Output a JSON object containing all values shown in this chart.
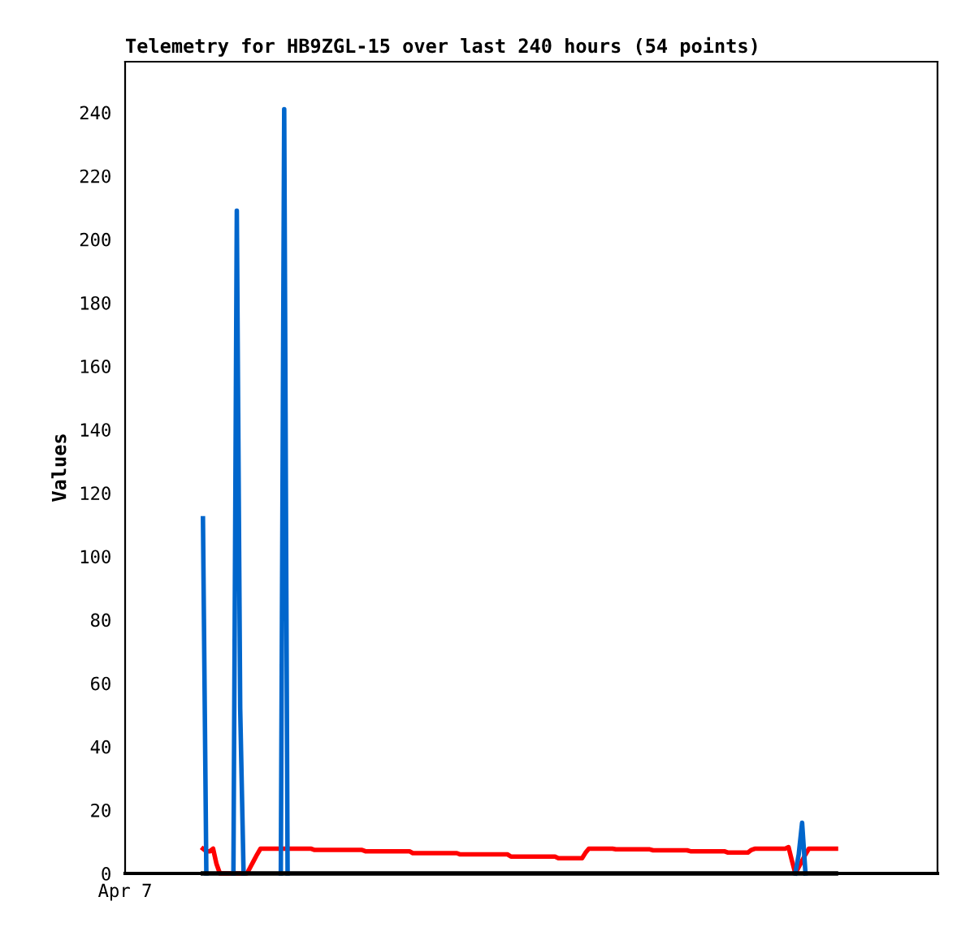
{
  "chart_data": {
    "type": "line",
    "title": "Telemetry for HB9ZGL-15 over last 240 hours (54 points)",
    "ylabel": "Values",
    "annotations": [
      "Apr 7"
    ],
    "categories": [
      null,
      null,
      null,
      null,
      null,
      null,
      null,
      null,
      null,
      null,
      null,
      null,
      null,
      null,
      null,
      null,
      null,
      null,
      null,
      null,
      null,
      null,
      null,
      null,
      null,
      null,
      null,
      null,
      null,
      null,
      null,
      null,
      null,
      null,
      null,
      null,
      null,
      null,
      null,
      null,
      null,
      null,
      null,
      null,
      null,
      null,
      null,
      null,
      null,
      null,
      null,
      null,
      null,
      null,
      null,
      null,
      null,
      null,
      null,
      null,
      null,
      null,
      null,
      null,
      null,
      null,
      null,
      null,
      null,
      null,
      null,
      null,
      null,
      null,
      null,
      null,
      null,
      null,
      null,
      null,
      null,
      null,
      null,
      null,
      null,
      null,
      null,
      null,
      null,
      null,
      null,
      null,
      null,
      null,
      null,
      null,
      null,
      null,
      null,
      null,
      null,
      null,
      null,
      null,
      null,
      null,
      null,
      null,
      null,
      null,
      null,
      null,
      null,
      null,
      null,
      null,
      null,
      null,
      null,
      null,
      null,
      null,
      null,
      null,
      null,
      null,
      null,
      null,
      null,
      null,
      null,
      null,
      null,
      null,
      null,
      null,
      null,
      null,
      null,
      null,
      null,
      null,
      null,
      null,
      null,
      null,
      null,
      null,
      null,
      null,
      null,
      null,
      null,
      null,
      null,
      null,
      null,
      null,
      null,
      null,
      null,
      null,
      null,
      null,
      null,
      null,
      null,
      null,
      null,
      null,
      null,
      null,
      null,
      null,
      null,
      null,
      null,
      null,
      null,
      null,
      null,
      null,
      null,
      null,
      null,
      null,
      null,
      null,
      null,
      null,
      null,
      null,
      null,
      null,
      null,
      null,
      null,
      null,
      null,
      null,
      null,
      null,
      null,
      null,
      null,
      null,
      null,
      null,
      null,
      null,
      null,
      null,
      null,
      null,
      null,
      null,
      null,
      null,
      null,
      null,
      null,
      null,
      null,
      null,
      null,
      null,
      null,
      null,
      null,
      null,
      null,
      null,
      null,
      null,
      null,
      null,
      null,
      null,
      null,
      null,
      null
    ],
    "ylim": [
      0,
      256
    ],
    "yticks": [
      0,
      20,
      40,
      60,
      80,
      100,
      120,
      140,
      160,
      180,
      200,
      220,
      240
    ],
    "grid": false,
    "marker": "none",
    "line_style": "solid",
    "series": [
      {
        "color": "#ff0000",
        "values": [
          null,
          null,
          null,
          null,
          null,
          null,
          null,
          null,
          null,
          null,
          null,
          null,
          null,
          null,
          null,
          null,
          null,
          null,
          null,
          null,
          null,
          null,
          null,
          7.8,
          7.0,
          7.0,
          7.8,
          3,
          0,
          0,
          0,
          0,
          0,
          0,
          0,
          0,
          0,
          2,
          4,
          6,
          7.8,
          7.8,
          7.8,
          7.8,
          7.8,
          7.8,
          7.8,
          7.8,
          7.8,
          7.8,
          7.8,
          7.8,
          7.8,
          7.8,
          7.8,
          7.8,
          7.4,
          7.4,
          7.4,
          7.4,
          7.4,
          7.4,
          7.4,
          7.4,
          7.4,
          7.4,
          7.4,
          7.4,
          7.4,
          7.4,
          7.4,
          7.0,
          7.0,
          7.0,
          7.0,
          7.0,
          7.0,
          7.0,
          7.0,
          7.0,
          7.0,
          7.0,
          7.0,
          7.0,
          7.0,
          6.4,
          6.4,
          6.4,
          6.4,
          6.4,
          6.4,
          6.4,
          6.4,
          6.4,
          6.4,
          6.4,
          6.4,
          6.4,
          6.4,
          6.0,
          6.0,
          6.0,
          6.0,
          6.0,
          6.0,
          6.0,
          6.0,
          6.0,
          6.0,
          6.0,
          6.0,
          6.0,
          6.0,
          6.0,
          5.3,
          5.3,
          5.3,
          5.3,
          5.3,
          5.3,
          5.3,
          5.3,
          5.3,
          5.3,
          5.3,
          5.3,
          5.3,
          5.3,
          4.8,
          4.8,
          4.8,
          4.8,
          4.8,
          4.8,
          4.8,
          4.8,
          6.5,
          7.8,
          7.8,
          7.8,
          7.8,
          7.8,
          7.8,
          7.8,
          7.8,
          7.6,
          7.6,
          7.6,
          7.6,
          7.6,
          7.6,
          7.6,
          7.6,
          7.6,
          7.6,
          7.6,
          7.3,
          7.3,
          7.3,
          7.3,
          7.3,
          7.3,
          7.3,
          7.3,
          7.3,
          7.3,
          7.3,
          7.0,
          7.0,
          7.0,
          7.0,
          7.0,
          7.0,
          7.0,
          7.0,
          7.0,
          7.0,
          7.0,
          6.6,
          6.6,
          6.6,
          6.6,
          6.6,
          6.6,
          6.6,
          7.4,
          7.8,
          7.8,
          7.8,
          7.8,
          7.8,
          7.8,
          7.8,
          7.8,
          7.8,
          7.8,
          8.3,
          4,
          0,
          2,
          4,
          6,
          7.8,
          7.8,
          7.8,
          7.8,
          7.8,
          7.8,
          7.8,
          7.8,
          7.8,
          null,
          null,
          null,
          null,
          null,
          null,
          null,
          null,
          null,
          null,
          null,
          null,
          null,
          null,
          null,
          null,
          null,
          null,
          null,
          null,
          null,
          null,
          null,
          null,
          null,
          null,
          null,
          null,
          null,
          null
        ]
      },
      {
        "color": "#0066cc",
        "values": [
          null,
          null,
          null,
          null,
          null,
          null,
          null,
          null,
          null,
          null,
          null,
          null,
          null,
          null,
          null,
          null,
          null,
          null,
          null,
          null,
          null,
          null,
          null,
          112,
          0,
          null,
          null,
          null,
          null,
          null,
          null,
          null,
          0,
          209,
          52,
          0,
          null,
          null,
          null,
          null,
          null,
          null,
          null,
          null,
          null,
          null,
          0,
          241,
          0,
          null,
          null,
          null,
          null,
          null,
          null,
          null,
          null,
          null,
          null,
          null,
          null,
          null,
          null,
          null,
          null,
          null,
          null,
          null,
          null,
          null,
          null,
          null,
          null,
          null,
          null,
          null,
          null,
          null,
          null,
          null,
          null,
          null,
          null,
          null,
          null,
          null,
          null,
          null,
          null,
          null,
          null,
          null,
          null,
          null,
          null,
          null,
          null,
          null,
          null,
          null,
          null,
          null,
          null,
          null,
          null,
          null,
          null,
          null,
          null,
          null,
          null,
          null,
          null,
          null,
          null,
          null,
          null,
          null,
          null,
          null,
          null,
          null,
          null,
          null,
          null,
          null,
          null,
          null,
          null,
          null,
          null,
          null,
          null,
          null,
          null,
          null,
          null,
          null,
          null,
          null,
          null,
          null,
          null,
          null,
          null,
          null,
          null,
          null,
          null,
          null,
          null,
          null,
          null,
          null,
          null,
          null,
          null,
          null,
          null,
          null,
          null,
          null,
          null,
          null,
          null,
          null,
          null,
          null,
          null,
          null,
          null,
          null,
          null,
          null,
          null,
          null,
          null,
          null,
          null,
          null,
          null,
          null,
          null,
          null,
          null,
          null,
          null,
          null,
          null,
          null,
          null,
          null,
          null,
          null,
          null,
          null,
          null,
          null,
          0,
          6,
          16,
          0,
          null,
          null,
          null,
          null,
          null,
          null,
          null,
          null,
          null,
          null,
          null,
          null,
          null,
          null,
          null,
          null,
          null,
          null,
          null,
          null,
          null,
          null,
          null,
          null,
          null,
          null,
          null,
          null,
          null,
          null,
          null,
          null,
          null,
          null,
          null,
          null,
          null,
          null,
          null
        ]
      },
      {
        "color": "#000000",
        "values": [
          null,
          null,
          null,
          null,
          null,
          null,
          null,
          null,
          null,
          null,
          null,
          null,
          null,
          null,
          null,
          null,
          null,
          null,
          null,
          null,
          null,
          null,
          null,
          0,
          0,
          0,
          0,
          0,
          0,
          0,
          0,
          0,
          0,
          0,
          0,
          0,
          0,
          0,
          0,
          0,
          0,
          0,
          0,
          0,
          0,
          0,
          0,
          0,
          0,
          0,
          0,
          0,
          0,
          0,
          0,
          0,
          0,
          0,
          0,
          0,
          0,
          0,
          0,
          0,
          0,
          0,
          0,
          0,
          0,
          0,
          0,
          0,
          0,
          0,
          0,
          0,
          0,
          0,
          0,
          0,
          0,
          0,
          0,
          0,
          0,
          0,
          0,
          0,
          0,
          0,
          0,
          0,
          0,
          0,
          0,
          0,
          0,
          0,
          0,
          0,
          0,
          0,
          0,
          0,
          0,
          0,
          0,
          0,
          0,
          0,
          0,
          0,
          0,
          0,
          0,
          0,
          0,
          0,
          0,
          0,
          0,
          0,
          0,
          0,
          0,
          0,
          0,
          0,
          0,
          0,
          0,
          0,
          0,
          0,
          0,
          0,
          0,
          0,
          0,
          0,
          0,
          0,
          0,
          0,
          0,
          0,
          0,
          0,
          0,
          0,
          0,
          0,
          0,
          0,
          0,
          0,
          0,
          0,
          0,
          0,
          0,
          0,
          0,
          0,
          0,
          0,
          0,
          0,
          0,
          0,
          0,
          0,
          0,
          0,
          0,
          0,
          0,
          0,
          0,
          0,
          0,
          0,
          0,
          0,
          0,
          0,
          0,
          0,
          0,
          0,
          0,
          0,
          0,
          0,
          0,
          0,
          0,
          0,
          0,
          0,
          0,
          0,
          0,
          0,
          0,
          0,
          0,
          0,
          0,
          0,
          0,
          null,
          null,
          null,
          null,
          null,
          null,
          null,
          null,
          null,
          null,
          null,
          null,
          null,
          null,
          null,
          null,
          null,
          null,
          null,
          null,
          null,
          null,
          null,
          null,
          null,
          null,
          null,
          null,
          null,
          null
        ]
      }
    ]
  }
}
